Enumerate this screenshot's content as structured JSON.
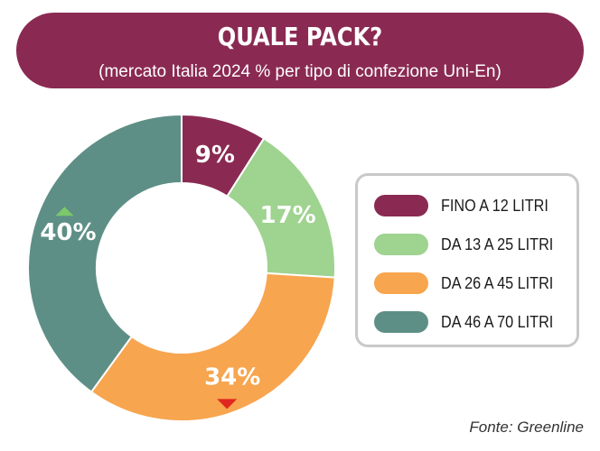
{
  "header": {
    "title": "QUALE PACK?",
    "subtitle": "(mercato Italia 2024 % per tipo di confezione Uni-En)"
  },
  "source": "Fonte: Greenline",
  "colors": {
    "header_bg": "#8a2a52",
    "up_arrow": "#7dc86a",
    "down_arrow": "#e0261f"
  },
  "chart_data": {
    "type": "pie",
    "style": "donut",
    "title": "QUALE PACK?",
    "subtitle": "(mercato Italia 2024 % per tipo di confezione Uni-En)",
    "categories": [
      "FINO A 12 LITRI",
      "DA 13 A 25 LITRI",
      "DA 26 A 45 LITRI",
      "DA 46 A 70 LITRI"
    ],
    "values": [
      9,
      17,
      34,
      40
    ],
    "labels": [
      "9%",
      "17%",
      "34%",
      "40%"
    ],
    "colors": [
      "#8a2a52",
      "#9fd390",
      "#f7a54f",
      "#5e8f86"
    ],
    "trend": [
      "",
      "",
      "down",
      "up"
    ],
    "legend_position": "right",
    "grid": false
  }
}
